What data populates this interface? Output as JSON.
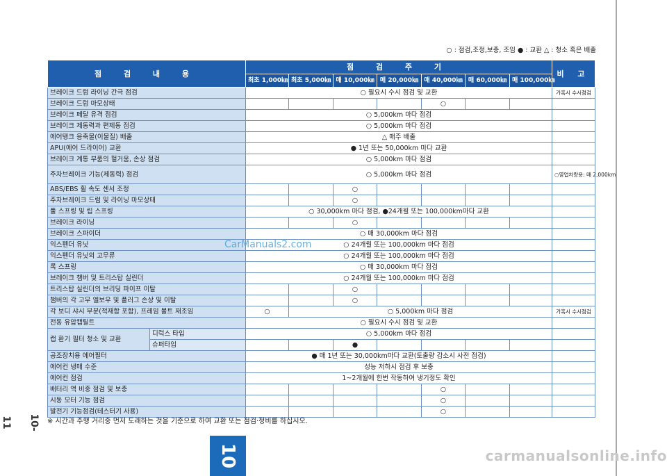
{
  "legend": "○ : 점검,조정,보충, 조임  ● : 교환  △ : 청소 혹은 배출",
  "page_number": "10-11",
  "tab_label": "10",
  "watermark": "CarManuals2.com",
  "footer": "carmanualsonline.info",
  "note": "※ 시간과 주행 거리중 먼저 도래하는 것을 기준으로 하여 교환 또는 점검·정비를 하십시오.",
  "header": {
    "item": "점 검 내 용",
    "period": "점 검 주 기",
    "remark": "비 고",
    "periods": [
      "최초 1,000㎞",
      "최초 5,000㎞",
      "매 10,000㎞",
      "매 20,000㎞",
      "매 40,000㎞",
      "매 60,000㎞",
      "매 100,000㎞"
    ]
  },
  "rows": [
    {
      "item": "브레이크 드럼 라이닝 간극 점검",
      "span": "○ 필요시 수시 점검 및 교환",
      "remark": "가혹시 수시점검"
    },
    {
      "item": "브레이크 드럼 마모상태",
      "marks": [
        "",
        "",
        "",
        "",
        "○",
        "",
        ""
      ]
    },
    {
      "item": "브레이크 페달 유격 점검",
      "span": "○ 5,000km 마다 점검"
    },
    {
      "item": "브레이크 제동력과 편제동 점검",
      "span": "○ 5,000km 마다 점검"
    },
    {
      "item": "에어탱크 응축물(이물질) 배출",
      "span": "△ 매주 배출"
    },
    {
      "item": "APU(에어 드라이어) 교환",
      "span": "● 1년 또는 50,000km 마다 교환"
    },
    {
      "item": "브레이크 계통 부품의 헐거움, 손상 점검",
      "span": "○ 5,000km 마다 점검"
    },
    {
      "item": "주차브레이크 기능(제동력) 점검",
      "span": "○ 5,000km 마다 점검",
      "remark": "○영업차량용: 매 2,000km",
      "tall": true
    },
    {
      "item": "ABS/EBS 휠 속도 센서 조정",
      "marks": [
        "",
        "",
        "○",
        "",
        "",
        "",
        ""
      ]
    },
    {
      "item": "주차브레이크 드럼 및 라이닝 마모상태",
      "marks": [
        "",
        "",
        "○",
        "",
        "",
        "",
        ""
      ]
    },
    {
      "item": "풀 스프링 및 립 스프링",
      "span": "○ 30,000km 마다 점검,   ●24개월 또는 100,000km마다 교환"
    },
    {
      "item": "브레이크 라이닝",
      "marks": [
        "",
        "",
        "○",
        "",
        "",
        "",
        ""
      ]
    },
    {
      "item": "브레이크 스파이더",
      "span": "○ 매 30,000km 마다 점검"
    },
    {
      "item": "익스펜더 유닛",
      "span": "○ 24개월 또는 100,000km 마다 점검"
    },
    {
      "item": "익스펜더 유닛의 고무류",
      "span": "○ 24개월 또는 100,000km 마다 점검"
    },
    {
      "item": "록 스프링",
      "span": "○ 매 30,000km 마다 점검"
    },
    {
      "item": "브레이크 챔버 및 트리스탑 실린더",
      "span": "○ 24개월 또는 100,000km 마다 점검"
    },
    {
      "item": "트리스탑 실린더의 브리딩 파이프 이탈",
      "marks": [
        "",
        "",
        "○",
        "",
        "",
        "",
        ""
      ]
    },
    {
      "item": "챔버의 각 고무 엘보우 및 플러그 손상 및 이탈",
      "marks": [
        "",
        "",
        "○",
        "",
        "",
        "",
        ""
      ]
    },
    {
      "item": "각 보디 샤시 부분(적재함 포함), 프레임 볼트 재조임",
      "first": "○",
      "span6": "○ 5,000km 마다 점검",
      "remark": "가혹시 수시점검"
    },
    {
      "item": "전동 유압캡틸트",
      "span": "○ 필요시 수시 점검 및 교환"
    }
  ],
  "cab_filter": {
    "item": "캡 환기 필터 청소 및 교환",
    "sub1": "디럭스 타입",
    "sub1_span": "○ 5,000km 마다 점검",
    "sub2": "슈퍼타입",
    "sub2_marks": [
      "",
      "",
      "●",
      "",
      "",
      "",
      ""
    ]
  },
  "rows2": [
    {
      "item": "공조장치용 에어필터",
      "span": "● 매 1년 또는 30,000km마다 교환(토출량 감소시 사전 점검)"
    },
    {
      "item": "에어컨 냉매 수준",
      "span": "성능 저하시 점검 후 보충"
    },
    {
      "item": "에어컨 점검",
      "span": "1~2개월에 한번 작동하여 냉기정도 확인"
    },
    {
      "item": "배터리 액 비중 점검 및 보충",
      "marks": [
        "",
        "",
        "",
        "",
        "○",
        "",
        ""
      ]
    },
    {
      "item": "시동 모터 기능 점검",
      "marks": [
        "",
        "",
        "",
        "",
        "○",
        "",
        ""
      ]
    },
    {
      "item": "발전기 기능점검(테스터기 사용)",
      "marks": [
        "",
        "",
        "",
        "",
        "○",
        "",
        ""
      ]
    }
  ]
}
